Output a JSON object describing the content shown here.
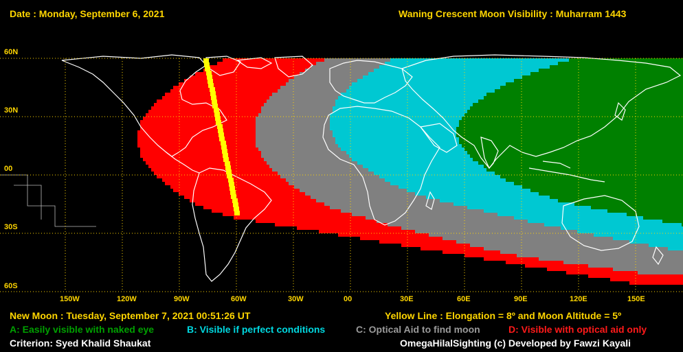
{
  "header": {
    "date": "Date : Monday, September 6, 2021",
    "title": "Waning Crescent Moon Visibility : Muharram 1443"
  },
  "map": {
    "lat_labels": [
      "60N",
      "30N",
      "00",
      "30S",
      "60S"
    ],
    "lon_labels": [
      "150W",
      "120W",
      "90W",
      "60W",
      "30W",
      "00",
      "30E",
      "60E",
      "90E",
      "120E",
      "150E"
    ],
    "zone_colors": {
      "A": "#008000",
      "B": "#00c8d2",
      "C": "#808080",
      "D": "#ff0000",
      "yellow_line": "#ffff00",
      "grid": "#ffd600"
    }
  },
  "footer": {
    "new_moon": "New Moon : Tuesday, September 7, 2021  00:51:26  UT",
    "yellow_line": "Yellow Line : Elongation = 8º  and Moon Altitude = 5º",
    "legend_a": "A: Easily visible with naked eye",
    "legend_b": "B: Visible if perfect conditions",
    "legend_c": "C: Optical Aid to find moon",
    "legend_d": "D: Visible with optical aid only",
    "criterion": "Criterion: Syed Khalid Shaukat",
    "credit": "OmegaHilalSighting  (c)  Developed by Fawzi Kayali"
  }
}
